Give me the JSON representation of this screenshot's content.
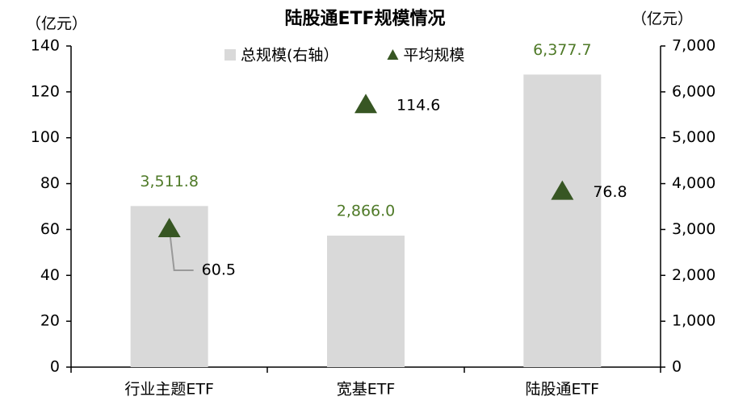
{
  "chart_data": {
    "type": "bar",
    "title": "陆股通ETF规模情况",
    "y_label": "（亿元）",
    "y2_label": "（亿元）",
    "categories": [
      "行业主题ETF",
      "宽基ETF",
      "陆股通ETF"
    ],
    "series": [
      {
        "name": "总规模(右轴）",
        "type": "bar",
        "axis": "y2",
        "color": "#d9d9d9",
        "values": [
          3511.8,
          2866.0,
          6377.7
        ],
        "value_labels": [
          "3,511.8",
          "2,866.0",
          "6,377.7"
        ],
        "label_color": "#4f7a28"
      },
      {
        "name": "平均规模",
        "type": "scatter",
        "marker": "triangle",
        "color": "#375623",
        "values": [
          60.5,
          114.6,
          76.8
        ]
      }
    ],
    "ylim": [
      0,
      140
    ],
    "yticks": [
      0,
      20,
      40,
      60,
      80,
      100,
      120,
      140
    ],
    "y2lim": [
      0,
      7000
    ],
    "y2ticks": [
      0,
      {
        "value": 1000,
        "label": "1,000"
      },
      {
        "value": 2000,
        "label": "2,000"
      },
      {
        "value": 3000,
        "label": "3,000"
      },
      {
        "value": 4000,
        "label": "4,000"
      },
      {
        "value": 5000,
        "label": "5,000"
      },
      {
        "value": 6000,
        "label": "6,000"
      },
      {
        "value": 7000,
        "label": "7,000"
      }
    ],
    "grid": false,
    "legend": "top"
  }
}
